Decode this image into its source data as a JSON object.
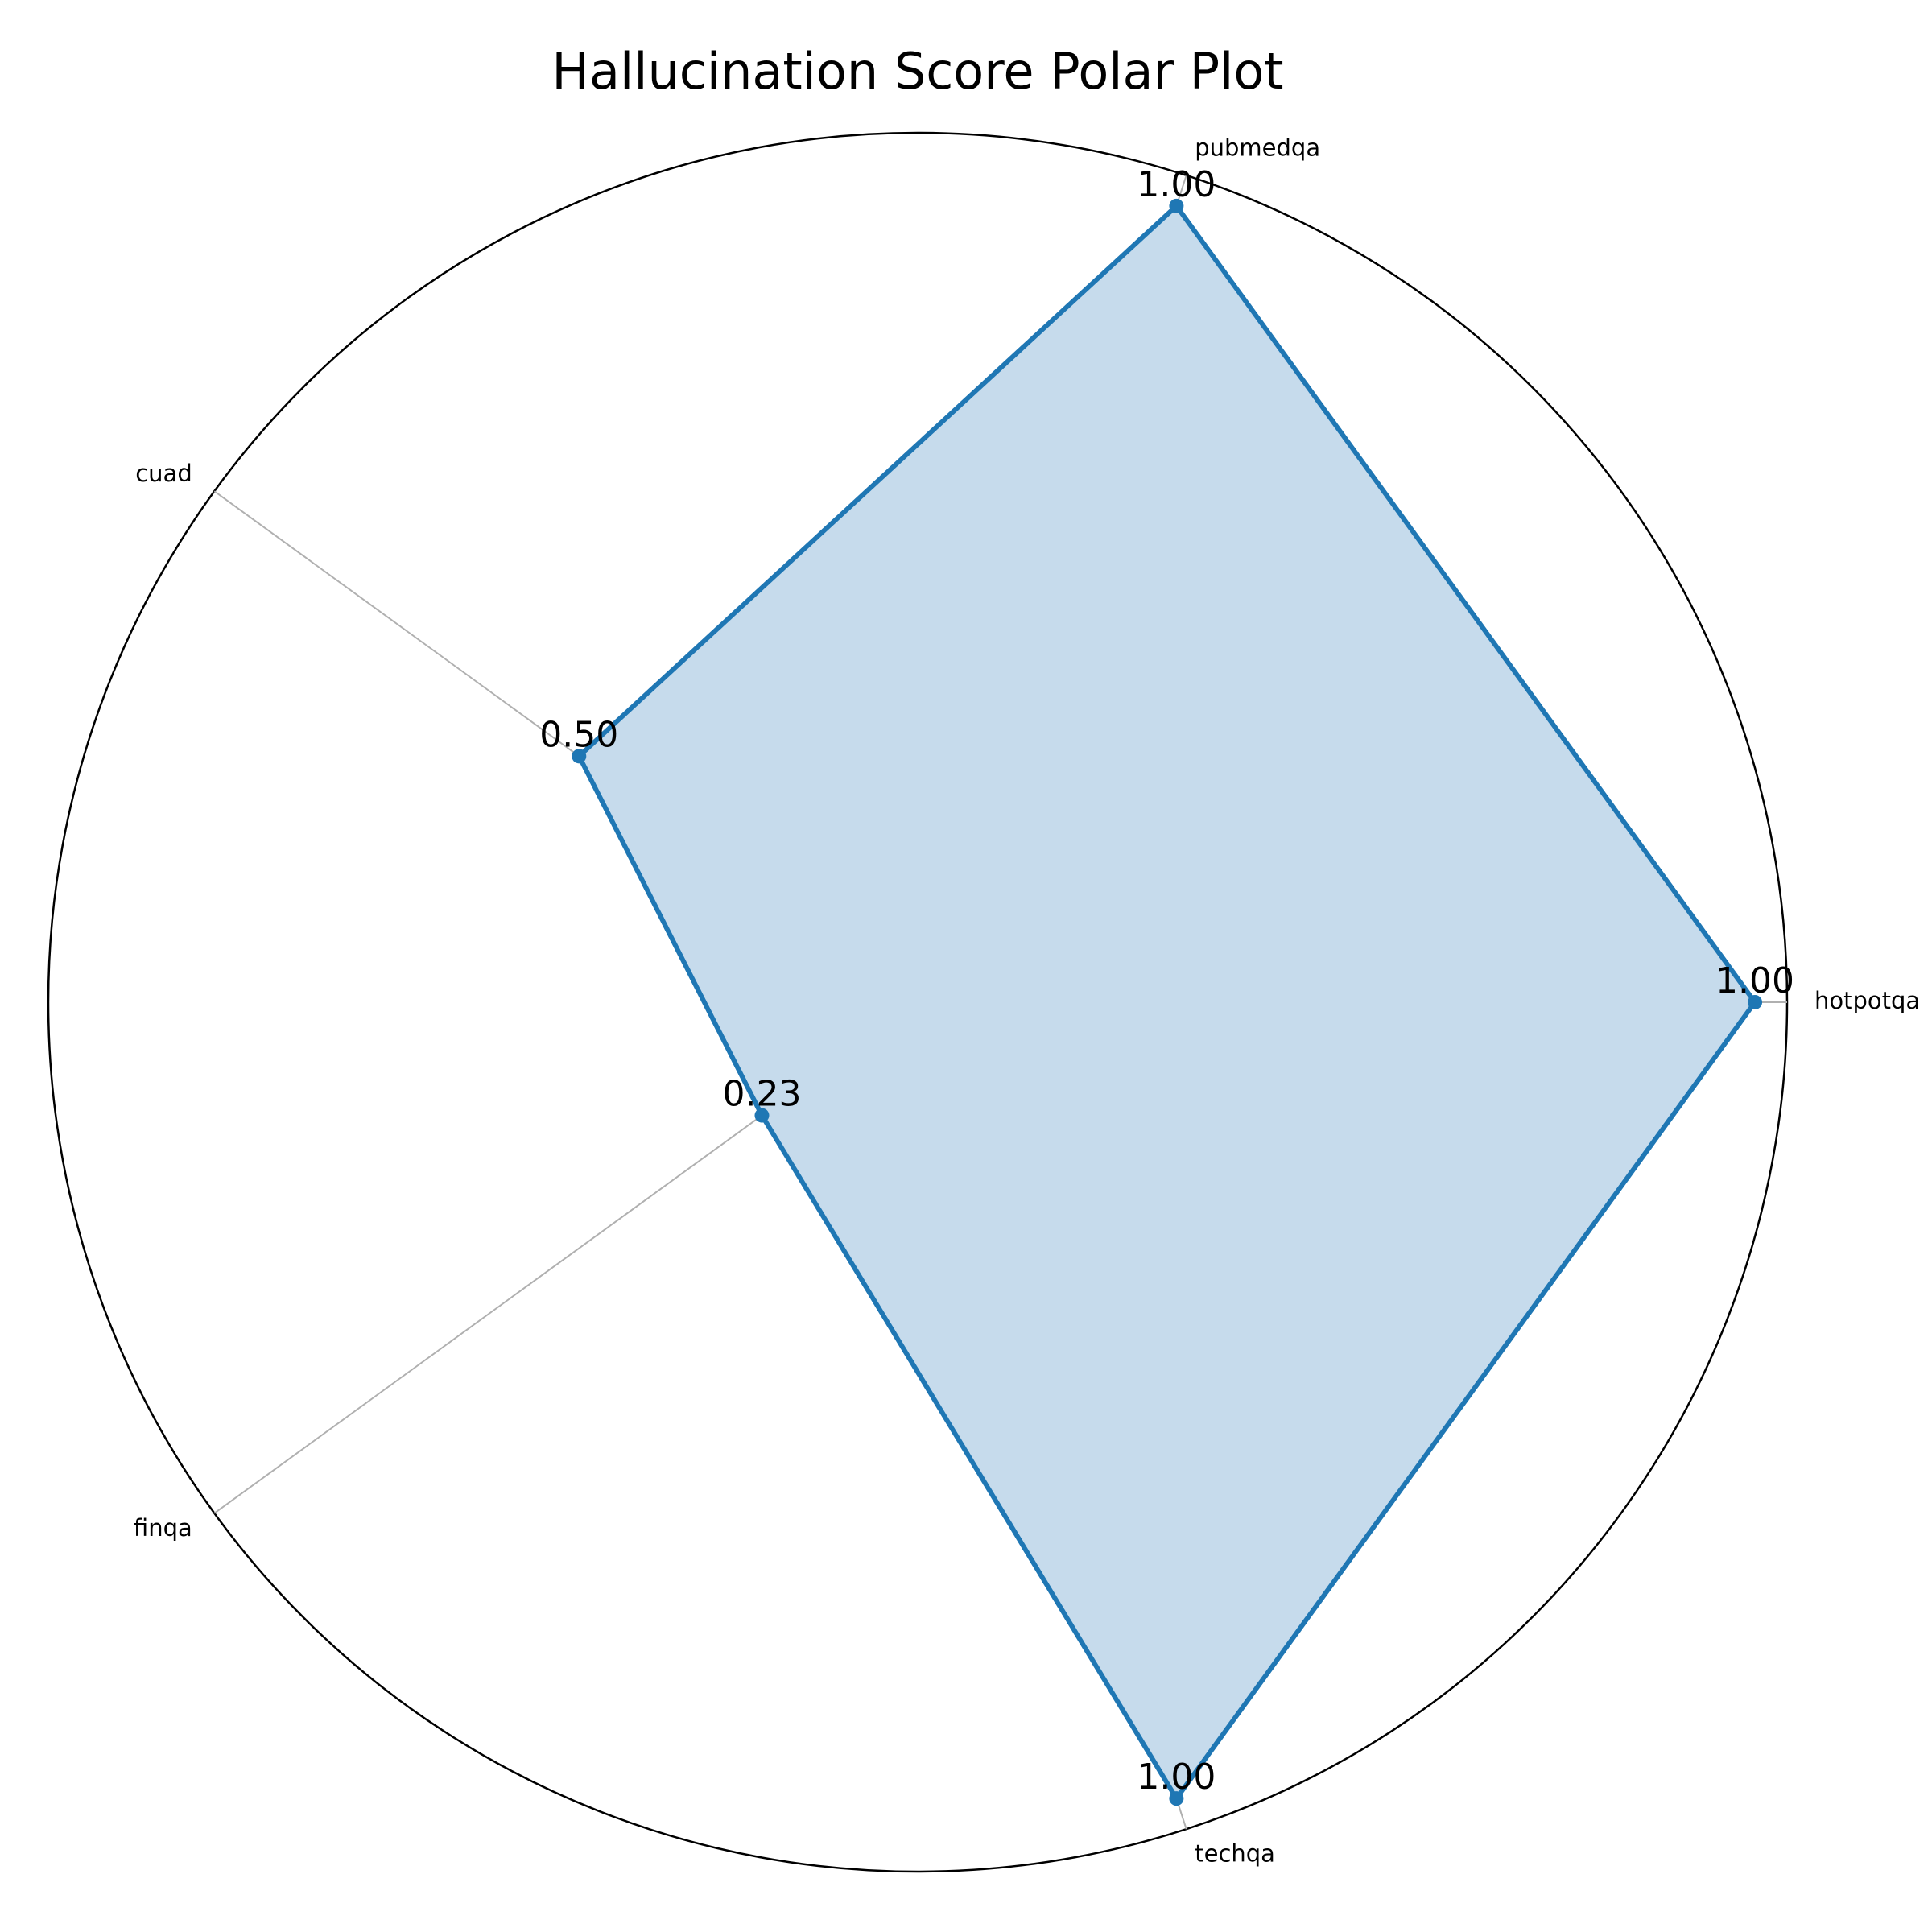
{
  "chart_data": {
    "type": "radar",
    "title": "Hallucination Score Polar Plot",
    "categories": [
      "hotpotqa",
      "pubmedqa",
      "cuad",
      "finqa",
      "techqa"
    ],
    "series": [
      {
        "values": [
          1.0,
          1.0,
          0.5,
          0.23,
          1.0
        ],
        "data_labels": [
          "1.00",
          "1.00",
          "0.50",
          "0.23",
          "1.00"
        ]
      }
    ],
    "rlim": [
      0,
      1
    ],
    "grid": true,
    "colors": {
      "line": "#1f77b4",
      "fill": "#c6dbec",
      "grid": "#b0b0b0",
      "outline": "#000000"
    }
  }
}
